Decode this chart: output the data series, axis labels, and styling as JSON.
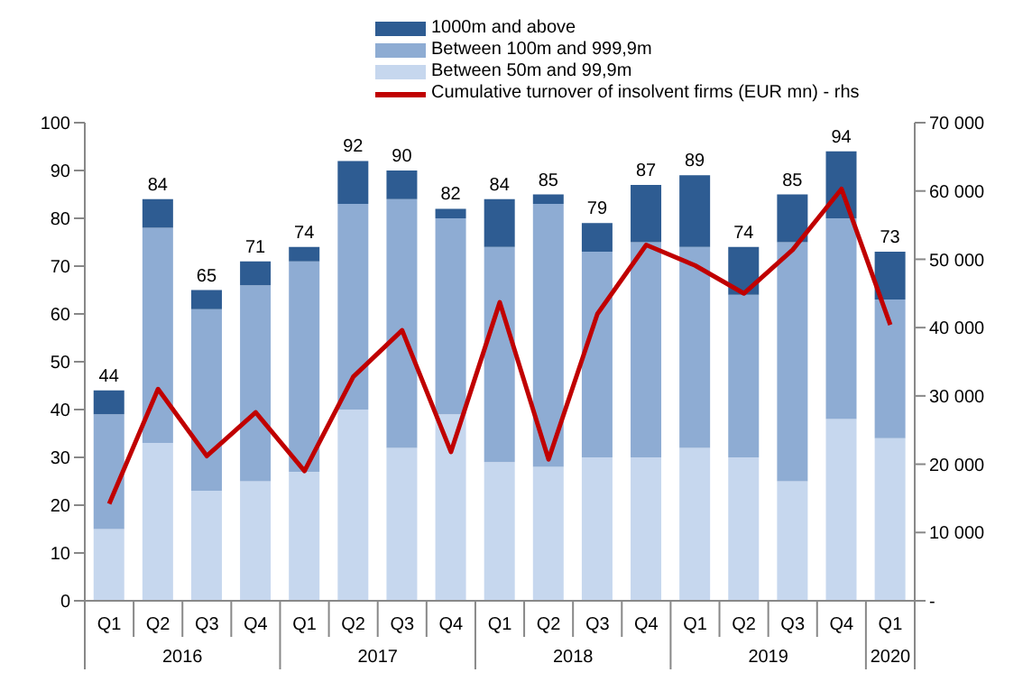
{
  "chart_data": {
    "type": "bar",
    "stacked": true,
    "legend": "top",
    "grid": false,
    "categories": [
      "Q1",
      "Q2",
      "Q3",
      "Q4",
      "Q1",
      "Q2",
      "Q3",
      "Q4",
      "Q1",
      "Q2",
      "Q3",
      "Q4",
      "Q1",
      "Q2",
      "Q3",
      "Q4",
      "Q1"
    ],
    "annotations": [
      "2016",
      "2017",
      "2018",
      "2019",
      "2020"
    ],
    "series": [
      {
        "name": "Between 50m and 99,9m",
        "color": "#c6d7ee",
        "values": [
          15,
          33,
          23,
          25,
          27,
          40,
          32,
          39,
          29,
          28,
          30,
          30,
          32,
          30,
          25,
          38,
          34
        ]
      },
      {
        "name": "Between 100m and 999,9m",
        "color": "#8eacd3",
        "values": [
          24,
          45,
          38,
          41,
          44,
          43,
          52,
          41,
          45,
          55,
          43,
          45,
          42,
          34,
          50,
          42,
          29
        ]
      },
      {
        "name": "1000m and above",
        "color": "#2e5c92",
        "values": [
          5,
          6,
          4,
          5,
          3,
          9,
          6,
          2,
          10,
          2,
          6,
          12,
          15,
          10,
          10,
          14,
          10
        ]
      },
      {
        "name": "Cumulative turnover of insolvent firms (EUR mn) - rhs",
        "type": "line",
        "axis": "y2",
        "color": "#c00000",
        "values": [
          14200,
          31000,
          21200,
          27600,
          19000,
          32800,
          39600,
          21800,
          43700,
          20700,
          42000,
          52100,
          49100,
          45000,
          51400,
          60300,
          40400
        ]
      }
    ],
    "totals": [
      "44",
      "84",
      "65",
      "71",
      "74",
      "92",
      "90",
      "82",
      "84",
      "85",
      "79",
      "87",
      "89",
      "74",
      "85",
      "94",
      "73"
    ],
    "ylim": [
      0,
      100
    ],
    "yticks": [
      0,
      10,
      20,
      30,
      40,
      50,
      60,
      70,
      80,
      90,
      100
    ],
    "y2lim": [
      0,
      70000
    ],
    "y2ticks": [
      {
        "value": 0,
        "label": "-"
      },
      {
        "value": 10000,
        "label": "10 000"
      },
      {
        "value": 20000,
        "label": "20 000"
      },
      {
        "value": 30000,
        "label": "30 000"
      },
      {
        "value": 40000,
        "label": "40 000"
      },
      {
        "value": 50000,
        "label": "50 000"
      },
      {
        "value": 60000,
        "label": "60 000"
      },
      {
        "value": 70000,
        "label": "70 000"
      }
    ]
  }
}
